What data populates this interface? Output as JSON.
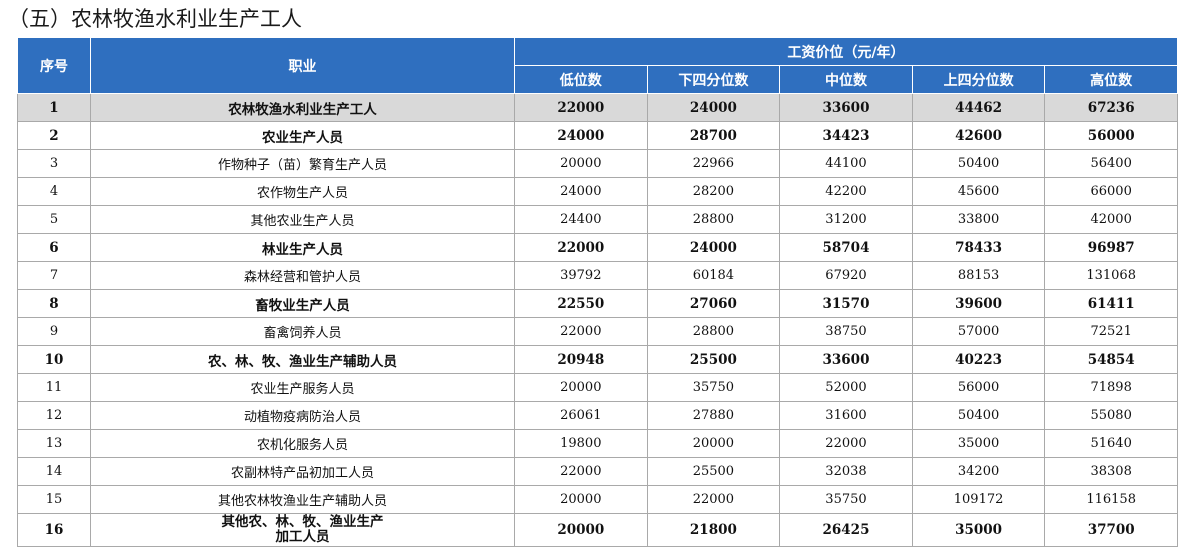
{
  "title": "（五）农林牧渔水利业生产工人",
  "header": {
    "seq": "序号",
    "occupation": "职业",
    "group": "工资价位（元/年）",
    "columns": [
      "低位数",
      "下四分位数",
      "中位数",
      "上四分位数",
      "高位数"
    ]
  },
  "rows": [
    {
      "no": "1",
      "name": "农林牧渔水利业生产工人",
      "values": [
        "22000",
        "24000",
        "33600",
        "44462",
        "67236"
      ]
    },
    {
      "no": "2",
      "name": "农业生产人员",
      "values": [
        "24000",
        "28700",
        "34423",
        "42600",
        "56000"
      ]
    },
    {
      "no": "3",
      "name": "作物种子（苗）繁育生产人员",
      "values": [
        "20000",
        "22966",
        "44100",
        "50400",
        "56400"
      ]
    },
    {
      "no": "4",
      "name": "农作物生产人员",
      "values": [
        "24000",
        "28200",
        "42200",
        "45600",
        "66000"
      ]
    },
    {
      "no": "5",
      "name": "其他农业生产人员",
      "values": [
        "24400",
        "28800",
        "31200",
        "33800",
        "42000"
      ]
    },
    {
      "no": "6",
      "name": "林业生产人员",
      "values": [
        "22000",
        "24000",
        "58704",
        "78433",
        "96987"
      ]
    },
    {
      "no": "7",
      "name": "森林经营和管护人员",
      "values": [
        "39792",
        "60184",
        "67920",
        "88153",
        "131068"
      ]
    },
    {
      "no": "8",
      "name": "畜牧业生产人员",
      "values": [
        "22550",
        "27060",
        "31570",
        "39600",
        "61411"
      ]
    },
    {
      "no": "9",
      "name": "畜禽饲养人员",
      "values": [
        "22000",
        "28800",
        "38750",
        "57000",
        "72521"
      ]
    },
    {
      "no": "10",
      "name": "农、林、牧、渔业生产辅助人员",
      "values": [
        "20948",
        "25500",
        "33600",
        "40223",
        "54854"
      ]
    },
    {
      "no": "11",
      "name": "农业生产服务人员",
      "values": [
        "20000",
        "35750",
        "52000",
        "56000",
        "71898"
      ]
    },
    {
      "no": "12",
      "name": "动植物疫病防治人员",
      "values": [
        "26061",
        "27880",
        "31600",
        "50400",
        "55080"
      ]
    },
    {
      "no": "13",
      "name": "农机化服务人员",
      "values": [
        "19800",
        "20000",
        "22000",
        "35000",
        "51640"
      ]
    },
    {
      "no": "14",
      "name": "农副林特产品初加工人员",
      "values": [
        "22000",
        "25500",
        "32038",
        "34200",
        "38308"
      ]
    },
    {
      "no": "15",
      "name": "其他农林牧渔业生产辅助人员",
      "values": [
        "20000",
        "22000",
        "35750",
        "109172",
        "116158"
      ]
    },
    {
      "no": "16",
      "name": "其他农、林、牧、渔业生产\n加工人员",
      "values": [
        "20000",
        "21800",
        "26425",
        "35000",
        "37700"
      ]
    }
  ]
}
